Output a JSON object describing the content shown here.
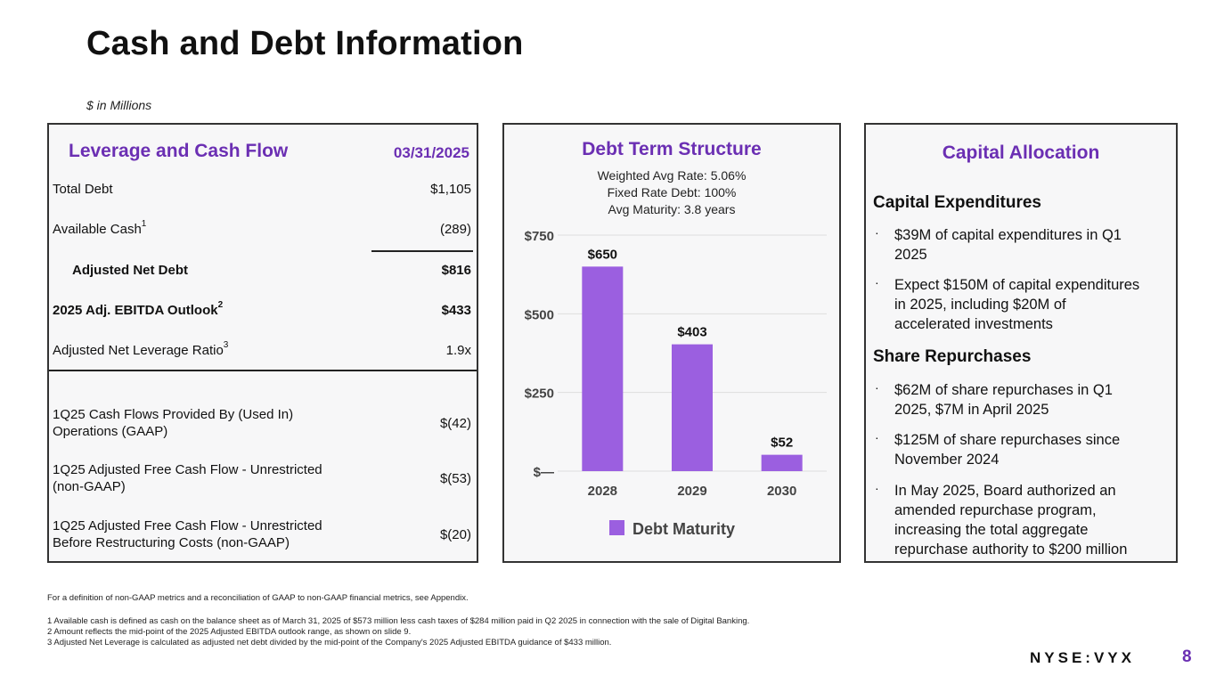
{
  "page": {
    "title": "Cash and Debt Information",
    "units": "$ in Millions",
    "brand": "NYSE:VYX",
    "page_number": "8"
  },
  "leverage": {
    "heading": "Leverage and Cash Flow",
    "date": "03/31/2025",
    "rows": [
      {
        "label": "Total Debt",
        "sup": "",
        "value": "$1,105"
      },
      {
        "label": "Available Cash",
        "sup": "1",
        "value": "(289)"
      },
      {
        "label": "Adjusted Net Debt",
        "sup": "",
        "value": "$816"
      },
      {
        "label": "2025 Adj. EBITDA Outlook",
        "sup": "2",
        "value": "$433"
      },
      {
        "label": "Adjusted Net Leverage Ratio",
        "sup": "3",
        "value": "1.9x"
      }
    ],
    "cash_flows": [
      {
        "label_line1": "1Q25 Cash Flows Provided By (Used In)",
        "label_line2": "Operations (GAAP)",
        "value": "$(42)"
      },
      {
        "label_line1": "1Q25 Adjusted Free Cash Flow - Unrestricted",
        "label_line2": "(non-GAAP)",
        "value": "$(53)"
      },
      {
        "label_line1": "1Q25 Adjusted Free Cash Flow - Unrestricted",
        "label_line2": "Before Restructuring Costs (non-GAAP)",
        "value": "$(20)"
      }
    ]
  },
  "debt": {
    "heading": "Debt Term Structure",
    "sub1": "Weighted Avg Rate: 5.06%",
    "sub2": "Fixed Rate Debt: 100%",
    "sub3": "Avg Maturity: 3.8 years"
  },
  "chart_data": {
    "type": "bar",
    "title": "Debt Term Structure",
    "categories": [
      "2028",
      "2029",
      "2030"
    ],
    "values": [
      650,
      403,
      52
    ],
    "value_labels": [
      "$650",
      "$403",
      "$52"
    ],
    "yticks": [
      0,
      250,
      500,
      750
    ],
    "ytick_labels": [
      "$—",
      "$250",
      "$500",
      "$750"
    ],
    "ylim": [
      0,
      750
    ],
    "legend": "Debt Maturity",
    "legend_position": "bottom",
    "bar_color": "#9b5fe0",
    "grid": true
  },
  "capital": {
    "heading": "Capital Allocation",
    "capex_title": "Capital Expenditures",
    "capex": [
      {
        "line1": "$39M of capital expenditures in Q1",
        "line2": "2025"
      },
      {
        "line1": "Expect $150M of capital expenditures",
        "line2": "in 2025, including $20M of",
        "line3": "accelerated investments"
      }
    ],
    "buyback_title": "Share Repurchases",
    "buyback": [
      {
        "line1": "$62M of share repurchases in Q1",
        "line2": "2025, $7M in April 2025"
      },
      {
        "line1": "$125M of share repurchases since",
        "line2": "November 2024"
      },
      {
        "line1": "In May 2025, Board authorized an",
        "line2": "amended repurchase program,",
        "line3": "increasing the total aggregate",
        "line4": "repurchase authority to $200 million"
      }
    ],
    "bullet_char": "·"
  },
  "footnotes": {
    "intro": "For a definition of non-GAAP metrics and a reconciliation of GAAP to non-GAAP financial metrics, see Appendix.",
    "n1": "1 Available cash is defined as cash on the balance sheet as of March 31, 2025 of $573 million less cash taxes of $284 million paid in Q2 2025 in connection with the sale of Digital Banking.",
    "n2": "2 Amount reflects the mid-point of the 2025 Adjusted EBITDA outlook range, as shown on slide 9.",
    "n3": "3 Adjusted Net Leverage is calculated as adjusted net debt divided by the mid-point of the Company's 2025 Adjusted EBITDA guidance of $433 million."
  },
  "colors": {
    "accent": "#6b2fb3",
    "bar": "#9b5fe0"
  }
}
